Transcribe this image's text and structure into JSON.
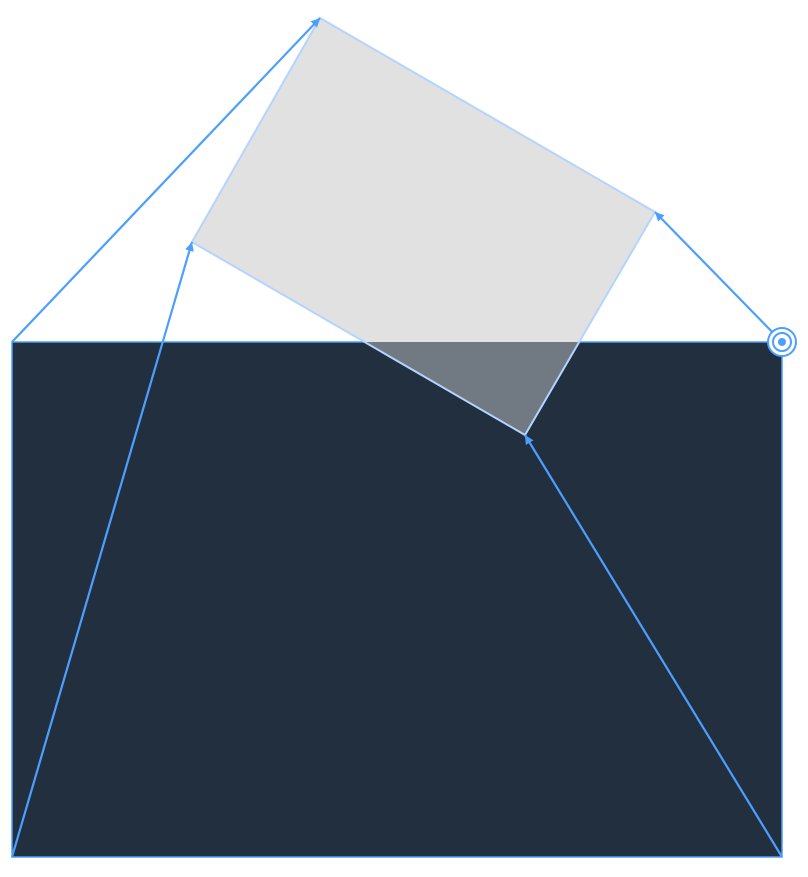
{
  "diagram": {
    "kind": "perspective-transform",
    "colors": {
      "background": "#ffffff",
      "source_fill": "#222f3f",
      "source_edge": "#4c9ffe",
      "target_fill": "#e1e1e1",
      "target_edge": "#b4d4ff",
      "overlap_fill": "#717a82",
      "arrow": "#4c9ffe"
    },
    "icons": {
      "active_handle": "target-ring-icon"
    }
  }
}
